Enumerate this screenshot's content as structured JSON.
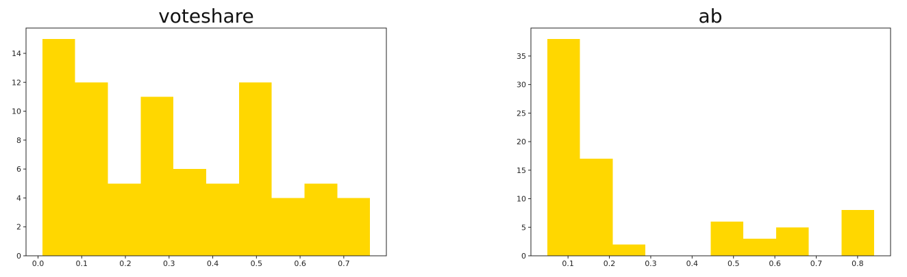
{
  "chart_data": [
    {
      "type": "bar",
      "title": "voteshare",
      "xlabel": "",
      "ylabel": "",
      "bar_color": "#ffd700",
      "bins": [
        {
          "x0": 0.01,
          "x1": 0.085,
          "count": 15
        },
        {
          "x0": 0.085,
          "x1": 0.16,
          "count": 12
        },
        {
          "x0": 0.16,
          "x1": 0.235,
          "count": 5
        },
        {
          "x0": 0.235,
          "x1": 0.31,
          "count": 11
        },
        {
          "x0": 0.31,
          "x1": 0.385,
          "count": 6
        },
        {
          "x0": 0.385,
          "x1": 0.46,
          "count": 5
        },
        {
          "x0": 0.46,
          "x1": 0.535,
          "count": 12
        },
        {
          "x0": 0.535,
          "x1": 0.61,
          "count": 4
        },
        {
          "x0": 0.61,
          "x1": 0.685,
          "count": 5
        },
        {
          "x0": 0.685,
          "x1": 0.76,
          "count": 4
        }
      ],
      "xlim": [
        -0.0275,
        0.7975
      ],
      "ylim": [
        0,
        15.75
      ],
      "xticks": [
        0.0,
        0.1,
        0.2,
        0.3,
        0.4,
        0.5,
        0.6,
        0.7
      ],
      "xtick_labels": [
        "0.0",
        "0.1",
        "0.2",
        "0.3",
        "0.4",
        "0.5",
        "0.6",
        "0.7"
      ],
      "yticks": [
        0,
        2,
        4,
        6,
        8,
        10,
        12,
        14
      ],
      "ytick_labels": [
        "0",
        "2",
        "4",
        "6",
        "8",
        "10",
        "12",
        "14"
      ],
      "grid": false
    },
    {
      "type": "bar",
      "title": "ab",
      "xlabel": "",
      "ylabel": "",
      "bar_color": "#ffd700",
      "bins": [
        {
          "x0": 0.05,
          "x1": 0.129,
          "count": 38
        },
        {
          "x0": 0.129,
          "x1": 0.208,
          "count": 17
        },
        {
          "x0": 0.208,
          "x1": 0.287,
          "count": 2
        },
        {
          "x0": 0.287,
          "x1": 0.366,
          "count": 0
        },
        {
          "x0": 0.366,
          "x1": 0.445,
          "count": 0
        },
        {
          "x0": 0.445,
          "x1": 0.524,
          "count": 6
        },
        {
          "x0": 0.524,
          "x1": 0.603,
          "count": 3
        },
        {
          "x0": 0.603,
          "x1": 0.682,
          "count": 5
        },
        {
          "x0": 0.682,
          "x1": 0.761,
          "count": 0
        },
        {
          "x0": 0.761,
          "x1": 0.84,
          "count": 8
        }
      ],
      "xlim": [
        0.0103,
        0.8797
      ],
      "ylim": [
        0,
        39.9
      ],
      "xticks": [
        0.1,
        0.2,
        0.3,
        0.4,
        0.5,
        0.6,
        0.7,
        0.8
      ],
      "xtick_labels": [
        "0.1",
        "0.2",
        "0.3",
        "0.4",
        "0.5",
        "0.6",
        "0.7",
        "0.8"
      ],
      "yticks": [
        0,
        5,
        10,
        15,
        20,
        25,
        30,
        35
      ],
      "ytick_labels": [
        "0",
        "5",
        "10",
        "15",
        "20",
        "25",
        "30",
        "35"
      ],
      "grid": false
    }
  ]
}
